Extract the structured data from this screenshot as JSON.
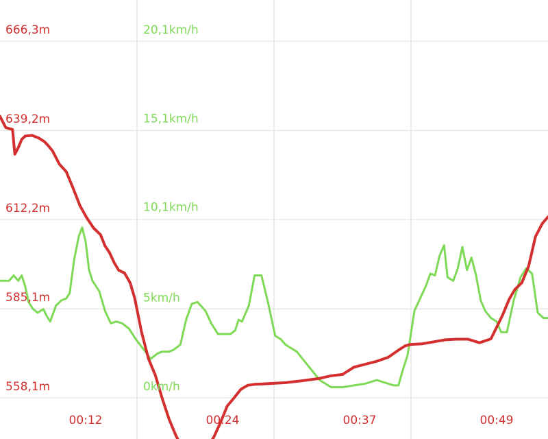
{
  "chart_data": {
    "type": "line",
    "colors": {
      "altitude": "#d32f2f",
      "speed": "#7ed957",
      "grid": "#dcdcdc",
      "time_label": "#d32f2f"
    },
    "altitude_axis": {
      "ticks": [
        558.1,
        585.1,
        612.2,
        639.2,
        666.3
      ],
      "tick_labels": [
        "558,1m",
        "585,1m",
        "612,2m",
        "639,2m",
        "666,3m"
      ],
      "range": [
        554.0,
        670.0
      ]
    },
    "speed_axis": {
      "ticks": [
        0,
        5,
        10.1,
        15.1,
        20.1
      ],
      "tick_labels": [
        "0km/h",
        "5km/h",
        "10,1km/h",
        "15,1km/h",
        "20,1km/h"
      ],
      "range": [
        -0.8,
        21.0
      ]
    },
    "x_axis": {
      "ticks": [
        12,
        24,
        37,
        49
      ],
      "tick_labels": [
        "00:12",
        "00:24",
        "00:37",
        "00:49"
      ],
      "range": [
        5,
        53
      ]
    },
    "series": [
      {
        "key": "altitude",
        "x": [
          5.0,
          5.5,
          6.1,
          6.3,
          6.6,
          6.9,
          7.2,
          7.8,
          8.4,
          8.9,
          9.2,
          9.6,
          10.2,
          10.8,
          11.4,
          12.0,
          12.6,
          13.2,
          13.8,
          14.2,
          14.6,
          15.0,
          15.4,
          15.9,
          16.4,
          16.8,
          17.4,
          18.0,
          18.6,
          19.2,
          19.8,
          20.4,
          20.9,
          21.3,
          21.9,
          22.5,
          23.1,
          23.7,
          24.3,
          24.9,
          25.5,
          26.1,
          26.7,
          27.3,
          28.5,
          30.0,
          31.5,
          33.0,
          34.0,
          35.0,
          36.0,
          37.0,
          38.0,
          39.0,
          40.0,
          40.5,
          41.0,
          42.0,
          43.0,
          44.0,
          45.0,
          46.0,
          47.0,
          48.0,
          49.0,
          49.6,
          50.1,
          50.7,
          51.3,
          51.9,
          52.5,
          53.0
        ],
        "y": [
          643.5,
          640.1,
          639.5,
          632.0,
          634.0,
          636.5,
          637.5,
          637.7,
          636.9,
          635.8,
          634.7,
          633.0,
          629.0,
          626.7,
          621.7,
          616.4,
          612.7,
          609.6,
          607.6,
          604.2,
          602.1,
          599.1,
          596.8,
          596.0,
          593.0,
          588.3,
          578.0,
          570.0,
          565.0,
          558.0,
          551.7,
          546.7,
          543.4,
          542.5,
          542.5,
          542.5,
          543.3,
          546.0,
          550.5,
          555.6,
          558.1,
          560.7,
          561.9,
          562.2,
          562.4,
          562.7,
          563.3,
          564.0,
          564.8,
          565.2,
          567.4,
          568.3,
          569.2,
          570.4,
          572.8,
          573.9,
          574.3,
          574.5,
          575.1,
          575.7,
          575.9,
          575.9,
          574.8,
          576.0,
          583.0,
          588.0,
          591.0,
          593.0,
          598.0,
          607.0,
          611.0,
          613.0
        ]
      },
      {
        "key": "speed",
        "x": [
          5.0,
          5.8,
          6.2,
          6.6,
          6.9,
          7.2,
          7.5,
          7.9,
          8.3,
          8.8,
          9.1,
          9.4,
          9.9,
          10.4,
          10.8,
          11.1,
          11.5,
          11.9,
          12.2,
          12.5,
          12.8,
          13.1,
          13.7,
          14.2,
          14.7,
          15.2,
          15.7,
          16.3,
          16.9,
          17.5,
          18.2,
          18.8,
          19.2,
          19.5,
          19.8,
          20.2,
          20.8,
          21.3,
          21.8,
          22.3,
          23.0,
          23.5,
          24.1,
          24.6,
          25.2,
          25.6,
          25.9,
          26.2,
          26.8,
          27.3,
          27.9,
          28.5,
          29.1,
          29.6,
          30.0,
          30.5,
          31.0,
          32.0,
          33.0,
          34.0,
          35.0,
          36.0,
          37.0,
          38.0,
          39.0,
          39.5,
          39.9,
          40.3,
          40.7,
          41.3,
          41.8,
          42.3,
          42.7,
          43.1,
          43.5,
          43.9,
          44.2,
          44.7,
          45.1,
          45.5,
          45.9,
          46.3,
          46.7,
          47.1,
          47.5,
          48.0,
          48.5,
          48.9,
          49.4,
          50.0,
          50.6,
          51.1,
          51.6,
          52.1,
          52.6,
          53.0
        ],
        "y": [
          6.6,
          6.6,
          6.9,
          6.6,
          6.9,
          6.3,
          5.4,
          5.0,
          4.8,
          5.0,
          4.6,
          4.3,
          5.2,
          5.5,
          5.6,
          5.9,
          7.8,
          9.1,
          9.6,
          8.8,
          7.2,
          6.6,
          6.0,
          4.9,
          4.2,
          4.3,
          4.2,
          3.9,
          3.3,
          2.8,
          2.2,
          2.5,
          2.6,
          2.6,
          2.6,
          2.7,
          3.0,
          4.4,
          5.3,
          5.4,
          4.9,
          4.2,
          3.6,
          3.6,
          3.6,
          3.8,
          4.4,
          4.3,
          5.2,
          6.9,
          6.9,
          5.3,
          3.5,
          3.3,
          3.0,
          2.8,
          2.6,
          1.8,
          1.0,
          0.6,
          0.6,
          0.7,
          0.8,
          1.0,
          0.8,
          0.7,
          0.7,
          1.6,
          2.4,
          4.9,
          5.6,
          6.3,
          7.0,
          6.9,
          8.0,
          8.6,
          6.8,
          6.6,
          7.3,
          8.5,
          7.2,
          7.9,
          6.9,
          5.5,
          4.9,
          4.5,
          4.3,
          3.7,
          3.7,
          5.5,
          6.8,
          7.3,
          7.0,
          4.8,
          4.5,
          4.5
        ]
      }
    ]
  }
}
